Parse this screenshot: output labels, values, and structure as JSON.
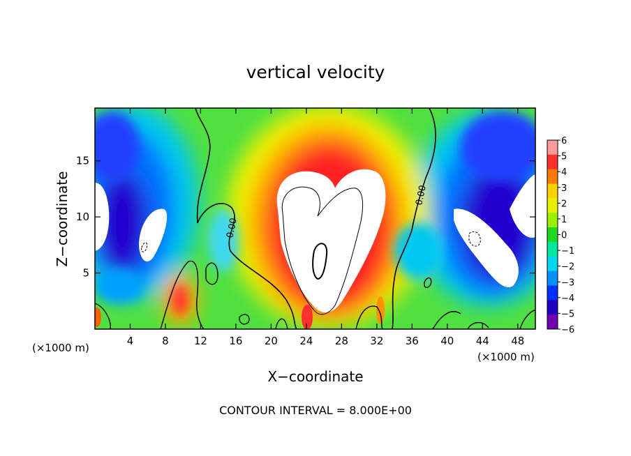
{
  "chart_data": {
    "type": "heatmap",
    "title": "vertical velocity",
    "xlabel": "X−coordinate",
    "ylabel": "Z−coordinate",
    "x_unit_left": "(×1000 m)",
    "x_unit_right": "(×1000 m)",
    "footer": "CONTOUR INTERVAL = 8.000E+00",
    "xlim": [
      0,
      50
    ],
    "ylim": [
      0,
      19.7
    ],
    "x_ticks": [
      4,
      8,
      12,
      16,
      20,
      24,
      28,
      32,
      36,
      40,
      44,
      48
    ],
    "x_tick_labels": [
      "4",
      "8",
      "12",
      "16",
      "20",
      "24",
      "28",
      "32",
      "36",
      "40",
      "44",
      "48"
    ],
    "y_ticks": [
      5,
      10,
      15
    ],
    "y_tick_labels": [
      "5",
      "10",
      "15"
    ],
    "contour_labels": [
      "0.00",
      "0.00"
    ],
    "colorbar": {
      "ticks": [
        6,
        5,
        4,
        3,
        2,
        1,
        0,
        -1,
        -2,
        -3,
        -4,
        -5,
        -6
      ],
      "tick_labels": [
        "6",
        "5",
        "4",
        "3",
        "2",
        "1",
        "0",
        "−1",
        "−2",
        "−3",
        "−4",
        "−5",
        "−6"
      ],
      "range": [
        -6,
        6
      ],
      "colors_top_to_bottom": [
        "#ff9a9a",
        "#ff3030",
        "#ff7a00",
        "#ffd000",
        "#e8f000",
        "#9af000",
        "#20d820",
        "#00e8a0",
        "#00d8f0",
        "#0090ff",
        "#0030ff",
        "#2000c0",
        "#7000b0"
      ]
    },
    "features": [
      {
        "type": "updraft_core",
        "x_range": [
          20,
          32
        ],
        "z_range": [
          1,
          16
        ],
        "value": "> 6"
      },
      {
        "type": "downdraft",
        "x_range": [
          3,
          7
        ],
        "z_range": [
          6,
          15
        ],
        "value": "< -6"
      },
      {
        "type": "downdraft",
        "x_range": [
          40,
          50
        ],
        "z_range": [
          3,
          15
        ],
        "value": "< -6"
      },
      {
        "type": "updraft",
        "x_range": [
          8,
          10.5
        ],
        "z_range": [
          1,
          4.5
        ],
        "value": "~ 5"
      }
    ],
    "grid": false,
    "legend_position": "right"
  }
}
